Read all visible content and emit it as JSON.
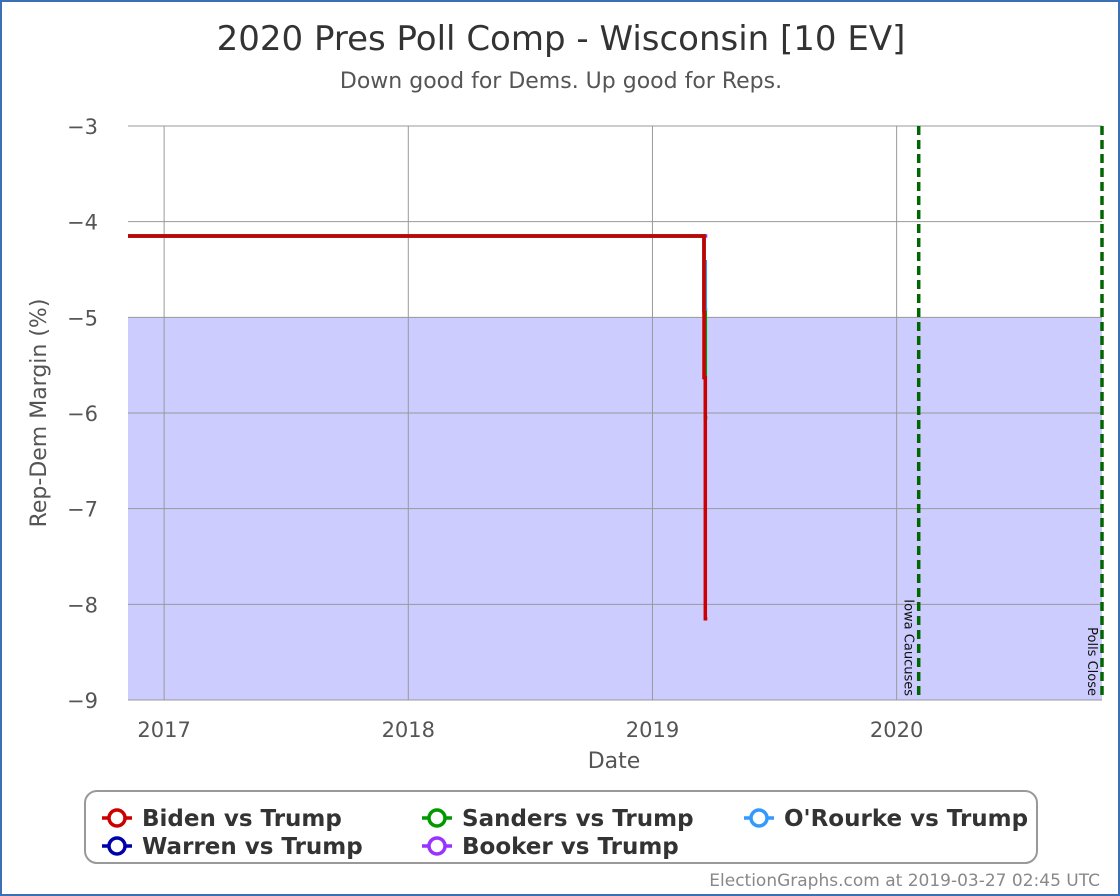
{
  "chart_data": {
    "type": "line",
    "title": "2020 Pres Poll Comp - Wisconsin [10 EV]",
    "subtitle": "Down good for Dems. Up good for Reps.",
    "xlabel": "Date",
    "ylabel": "Rep-Dem Margin (%)",
    "xlim": [
      "2016-11-08",
      "2020-11-03"
    ],
    "ylim": [
      -9,
      -3
    ],
    "x_ticks": [
      "2017",
      "2018",
      "2019",
      "2020"
    ],
    "x_tick_dates": [
      "2017-01-01",
      "2018-01-01",
      "2019-01-01",
      "2020-01-01"
    ],
    "y_ticks": [
      -3,
      -4,
      -5,
      -6,
      -7,
      -8,
      -9
    ],
    "grid": true,
    "shaded_band": {
      "from": -9,
      "to": -5,
      "color": "#ccccff"
    },
    "reference_lines": [
      {
        "label": "Iowa Caucuses",
        "date": "2020-02-03",
        "color": "#006600"
      },
      {
        "label": "Polls Close",
        "date": "2020-11-03",
        "color": "#006600"
      }
    ],
    "series": [
      {
        "name": "Biden vs Trump",
        "color": "#cc0000",
        "points": [
          [
            "2016-11-08",
            -4.15
          ],
          [
            "2019-03-19",
            -4.15
          ],
          [
            "2019-03-19",
            -5.63
          ],
          [
            "2019-03-21",
            -5.63
          ],
          [
            "2019-03-21",
            -8.15
          ],
          [
            "2019-03-24",
            -8.15
          ]
        ]
      },
      {
        "name": "Sanders vs Trump",
        "color": "#009900",
        "points": [
          [
            "2016-11-08",
            -4.15
          ],
          [
            "2019-03-19",
            -4.15
          ],
          [
            "2019-03-19",
            -4.95
          ],
          [
            "2019-03-21",
            -4.95
          ],
          [
            "2019-03-21",
            -6.05
          ],
          [
            "2019-03-24",
            -6.05
          ]
        ]
      },
      {
        "name": "O'Rourke vs Trump",
        "color": "#3399ff",
        "points": [
          [
            "2016-11-08",
            -4.15
          ],
          [
            "2019-03-19",
            -4.15
          ],
          [
            "2019-03-19",
            -4.42
          ],
          [
            "2019-03-21",
            -4.42
          ],
          [
            "2019-03-21",
            -4.92
          ],
          [
            "2019-03-24",
            -4.92
          ]
        ]
      },
      {
        "name": "Warren vs Trump",
        "color": "#0000aa",
        "points": [
          [
            "2016-11-08",
            -4.15
          ],
          [
            "2019-03-19",
            -4.15
          ],
          [
            "2019-03-19",
            -4.92
          ],
          [
            "2019-03-21",
            -4.92
          ]
        ]
      },
      {
        "name": "Booker vs Trump",
        "color": "#9933ff",
        "points": [
          [
            "2016-11-08",
            -4.15
          ],
          [
            "2019-03-24",
            -4.15
          ]
        ]
      }
    ]
  },
  "legend_rows": [
    [
      "Biden vs Trump",
      "Sanders vs Trump",
      "O'Rourke vs Trump"
    ],
    [
      "Warren vs Trump",
      "Booker vs Trump"
    ]
  ],
  "credit": "ElectionGraphs.com at 2019-03-27 02:45 UTC",
  "colors": {
    "grid": "#999999",
    "axis_line": "#333333",
    "legend_border": "#999999",
    "frame_border": "#3b6fb6"
  }
}
